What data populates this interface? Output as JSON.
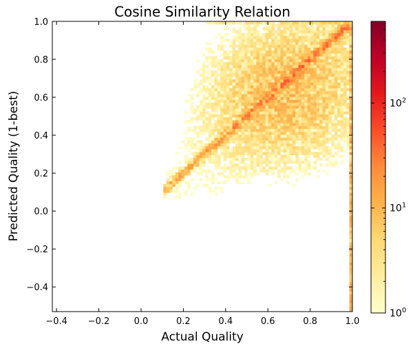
{
  "chart_data": {
    "type": "heatmap",
    "title": "Cosine Similarity Relation",
    "xlabel": "Actual Quality",
    "ylabel": "Predicted Quality (1-best)",
    "xlim": [
      -0.42,
      1.0
    ],
    "ylim": [
      -0.53,
      1.0
    ],
    "x_ticks": [
      "−0.4",
      "−0.2",
      "0.0",
      "0.2",
      "0.4",
      "0.6",
      "0.8",
      "1.0"
    ],
    "x_tick_values": [
      -0.4,
      -0.2,
      0.0,
      0.2,
      0.4,
      0.6,
      0.8,
      1.0
    ],
    "y_ticks": [
      "−0.4",
      "−0.2",
      "0.0",
      "0.2",
      "0.4",
      "0.6",
      "0.8",
      "1.0"
    ],
    "y_tick_values": [
      -0.4,
      -0.2,
      0.0,
      0.2,
      0.4,
      0.6,
      0.8,
      1.0
    ],
    "bins": 100,
    "colorbar": {
      "scale": "log",
      "range": [
        1,
        600
      ],
      "ticks": [
        {
          "base": "10",
          "exp": "0",
          "value": 1
        },
        {
          "base": "10",
          "exp": "1",
          "value": 10
        },
        {
          "base": "10",
          "exp": "2",
          "value": 100
        }
      ],
      "colormap": "YlOrRd",
      "colors": [
        "#ffffcc",
        "#ffeda0",
        "#fed976",
        "#feb24c",
        "#fd8d3c",
        "#fc4e2a",
        "#e31a1c",
        "#bd0026",
        "#800026"
      ]
    }
  }
}
